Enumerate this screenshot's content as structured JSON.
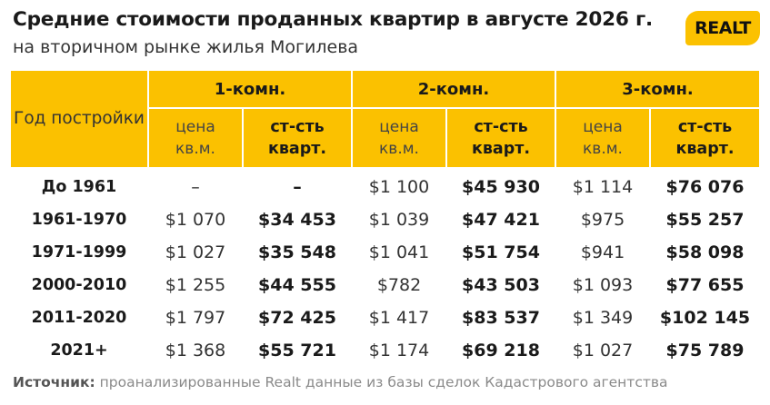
{
  "title": "Средние стоимости проданных квартир в августе 2026 г.",
  "subtitle": "на вторичном рынке жилья Могилева",
  "logo": "REALT",
  "header": {
    "year": "Год постройки",
    "groups": [
      "1-комн.",
      "2-комн.",
      "3-комн."
    ],
    "price": "цена кв.м.",
    "cost": "ст-сть кварт."
  },
  "rows": [
    {
      "year": "До 1961",
      "v": [
        "–",
        "–",
        "$1 100",
        "$45 930",
        "$1 114",
        "$76 076"
      ]
    },
    {
      "year": "1961-1970",
      "v": [
        "$1 070",
        "$34 453",
        "$1 039",
        "$47 421",
        "$975",
        "$55 257"
      ]
    },
    {
      "year": "1971-1999",
      "v": [
        "$1 027",
        "$35 548",
        "$1 041",
        "$51 754",
        "$941",
        "$58 098"
      ]
    },
    {
      "year": "2000-2010",
      "v": [
        "$1 255",
        "$44 555",
        "$782",
        "$43 503",
        "$1 093",
        "$77 655"
      ]
    },
    {
      "year": "2011-2020",
      "v": [
        "$1 797",
        "$72 425",
        "$1 417",
        "$83 537",
        "$1 349",
        "$102 145"
      ]
    },
    {
      "year": "2021+",
      "v": [
        "$1 368",
        "$55 721",
        "$1 174",
        "$69 218",
        "$1 027",
        "$75 789"
      ]
    }
  ],
  "footer": {
    "label": "Источник:",
    "text": " проанализированные Realt данные из базы сделок Кадастрового агентства"
  },
  "colors": {
    "accent": "#fbc100"
  }
}
